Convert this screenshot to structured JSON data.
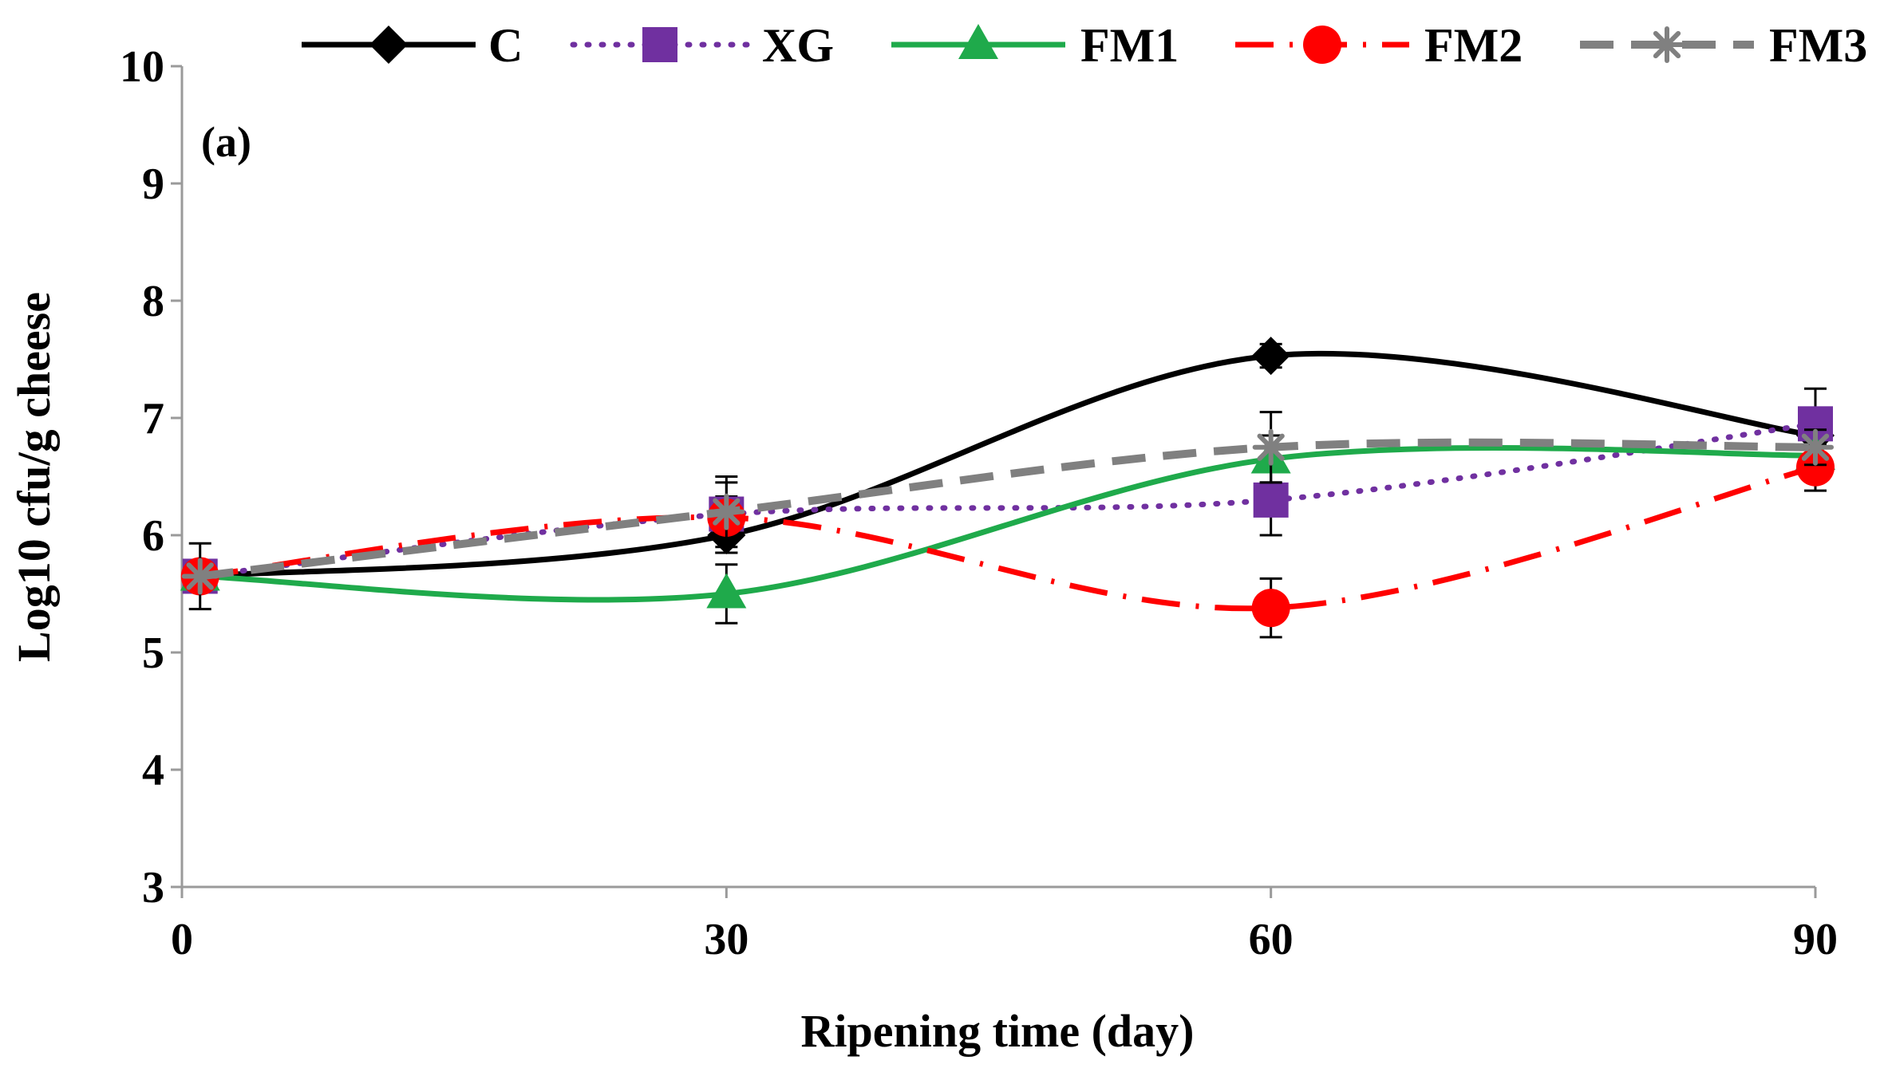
{
  "chart_data": {
    "type": "line",
    "title": "",
    "annotation": "(a)",
    "xlabel": "Ripening time (day)",
    "ylabel": "Log10 cfu/g cheese",
    "x": [
      1,
      30,
      60,
      90
    ],
    "xticks": [
      "0",
      "30",
      "60",
      "90"
    ],
    "xlim": [
      0,
      90
    ],
    "ylim": [
      3,
      10
    ],
    "yticks": [
      "3",
      "4",
      "5",
      "6",
      "7",
      "8",
      "9",
      "10"
    ],
    "grid": false,
    "legend_position": "top",
    "series": [
      {
        "name": "C",
        "values": [
          5.65,
          6.0,
          7.53,
          6.85
        ],
        "errors": [
          0.1,
          0.15,
          0.1,
          0.1
        ],
        "color": "#000000",
        "dash": "solid",
        "marker": "diamond"
      },
      {
        "name": "XG",
        "values": [
          5.65,
          6.18,
          6.3,
          6.95
        ],
        "errors": [
          0.1,
          0.15,
          0.3,
          0.3
        ],
        "color": "#7030a0",
        "dash": "dot",
        "marker": "square"
      },
      {
        "name": "FM1",
        "values": [
          5.65,
          5.5,
          6.65,
          6.68
        ],
        "errors": [
          0.1,
          0.25,
          0.2,
          0.1
        ],
        "color": "#1faa4b",
        "dash": "solid",
        "marker": "triangle"
      },
      {
        "name": "FM2",
        "values": [
          5.65,
          6.15,
          5.38,
          6.58
        ],
        "errors": [
          0.1,
          0.3,
          0.25,
          0.2
        ],
        "color": "#ff0000",
        "dash": "dashdot",
        "marker": "circle"
      },
      {
        "name": "FM3",
        "values": [
          5.65,
          6.2,
          6.75,
          6.75
        ],
        "errors": [
          0.28,
          0.3,
          0.3,
          0.15
        ],
        "color": "#808080",
        "dash": "dash",
        "marker": "star"
      }
    ]
  }
}
